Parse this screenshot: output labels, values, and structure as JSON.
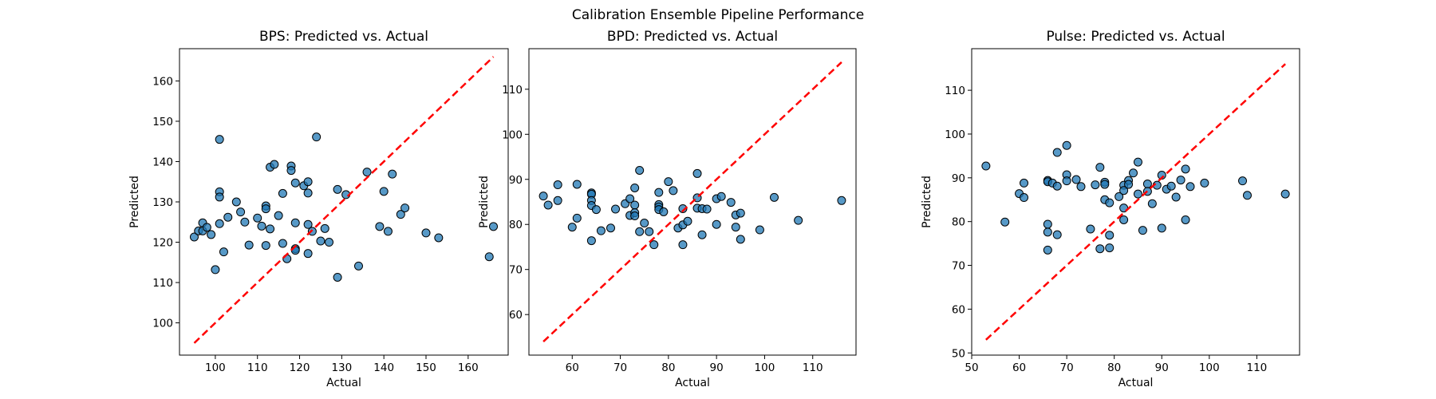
{
  "figure": {
    "suptitle": "Calibration Ensemble Pipeline Performance"
  },
  "chart_data": [
    {
      "type": "scatter",
      "title": "BPS: Predicted vs. Actual",
      "xlabel": "Actual",
      "ylabel": "Predicted",
      "xlim": [
        91.5,
        169.5
      ],
      "ylim": [
        92,
        168
      ],
      "xticks": [
        100,
        110,
        120,
        130,
        140,
        150,
        160
      ],
      "yticks": [
        100,
        110,
        120,
        130,
        140,
        150,
        160
      ],
      "ideal_line": [
        [
          95,
          95
        ],
        [
          166,
          166
        ]
      ],
      "ideal_line_color": "#ff0000",
      "point_color": "#1f77b4",
      "points": [
        [
          95,
          121.3
        ],
        [
          96,
          122.8
        ],
        [
          97,
          124.8
        ],
        [
          97,
          122.8
        ],
        [
          98,
          123.7
        ],
        [
          99,
          121.9
        ],
        [
          100,
          113.2
        ],
        [
          101,
          145.5
        ],
        [
          101,
          132.5
        ],
        [
          101,
          131.2
        ],
        [
          101,
          124.6
        ],
        [
          102,
          117.6
        ],
        [
          103,
          126.2
        ],
        [
          105,
          130
        ],
        [
          106,
          127.5
        ],
        [
          107,
          125
        ],
        [
          108,
          119.3
        ],
        [
          110,
          126
        ],
        [
          111,
          124
        ],
        [
          112,
          129
        ],
        [
          112,
          128.3
        ],
        [
          112,
          119.2
        ],
        [
          113,
          138.6
        ],
        [
          113,
          123.3
        ],
        [
          114,
          139.3
        ],
        [
          115,
          126.6
        ],
        [
          116,
          132.1
        ],
        [
          116,
          119.7
        ],
        [
          117,
          115.9
        ],
        [
          118,
          138.9
        ],
        [
          118,
          137.8
        ],
        [
          119,
          124.8
        ],
        [
          119,
          134.7
        ],
        [
          119,
          118.4
        ],
        [
          119,
          118
        ],
        [
          121,
          134
        ],
        [
          122,
          135
        ],
        [
          122,
          132.2
        ],
        [
          122,
          124.4
        ],
        [
          122,
          117.2
        ],
        [
          123,
          122.7
        ],
        [
          124,
          146.1
        ],
        [
          125,
          120.3
        ],
        [
          126,
          123.4
        ],
        [
          127,
          120
        ],
        [
          129,
          133.1
        ],
        [
          129,
          111.3
        ],
        [
          131,
          131.8
        ],
        [
          134,
          114.1
        ],
        [
          136,
          137.4
        ],
        [
          139,
          123.9
        ],
        [
          140,
          132.6
        ],
        [
          141,
          122.7
        ],
        [
          142,
          136.9
        ],
        [
          144,
          126.9
        ],
        [
          145,
          128.5
        ],
        [
          150,
          122.3
        ],
        [
          153,
          121.1
        ],
        [
          165,
          116.4
        ],
        [
          166,
          123.9
        ]
      ]
    },
    {
      "type": "scatter",
      "title": "BPD: Predicted vs. Actual",
      "xlabel": "Actual",
      "ylabel": "Predicted",
      "xlim": [
        51,
        119
      ],
      "ylim": [
        51,
        119
      ],
      "xticks": [
        60,
        70,
        80,
        90,
        100,
        110
      ],
      "yticks": [
        60,
        70,
        80,
        90,
        100,
        110
      ],
      "ideal_line": [
        [
          54,
          54
        ],
        [
          116,
          116
        ]
      ],
      "ideal_line_color": "#ff0000",
      "point_color": "#1f77b4",
      "points": [
        [
          54,
          86.3
        ],
        [
          55,
          84.3
        ],
        [
          57,
          88.8
        ],
        [
          57,
          85.3
        ],
        [
          60,
          79.4
        ],
        [
          61,
          88.9
        ],
        [
          61,
          81.4
        ],
        [
          64,
          87
        ],
        [
          64,
          86.7
        ],
        [
          64,
          85.3
        ],
        [
          64,
          84.2
        ],
        [
          64,
          76.4
        ],
        [
          65,
          83.3
        ],
        [
          66,
          78.6
        ],
        [
          68,
          79.2
        ],
        [
          69,
          83.4
        ],
        [
          71,
          84.6
        ],
        [
          72,
          85.7
        ],
        [
          72,
          82
        ],
        [
          73,
          88.1
        ],
        [
          73,
          84.3
        ],
        [
          73,
          82.6
        ],
        [
          73,
          81.9
        ],
        [
          74,
          92
        ],
        [
          74,
          78.4
        ],
        [
          75,
          80.3
        ],
        [
          76,
          78.4
        ],
        [
          77,
          75.5
        ],
        [
          78,
          87.1
        ],
        [
          78,
          84.4
        ],
        [
          78,
          83.9
        ],
        [
          78,
          83.3
        ],
        [
          79,
          82.8
        ],
        [
          80,
          89.5
        ],
        [
          81,
          87.5
        ],
        [
          82,
          79.2
        ],
        [
          83,
          83.5
        ],
        [
          83,
          75.5
        ],
        [
          83,
          79.9
        ],
        [
          84,
          80.7
        ],
        [
          86,
          91.3
        ],
        [
          86,
          85.9
        ],
        [
          86,
          83.6
        ],
        [
          87,
          77.7
        ],
        [
          87,
          83.5
        ],
        [
          88,
          83.4
        ],
        [
          90,
          85.7
        ],
        [
          90,
          80
        ],
        [
          91,
          86.2
        ],
        [
          93,
          84.9
        ],
        [
          94,
          82.1
        ],
        [
          94,
          79.4
        ],
        [
          95,
          82.5
        ],
        [
          95,
          76.7
        ],
        [
          99,
          78.8
        ],
        [
          102,
          86
        ],
        [
          107,
          80.9
        ],
        [
          116,
          85.3
        ]
      ]
    },
    {
      "type": "scatter",
      "title": "Pulse: Predicted vs. Actual",
      "xlabel": "Actual",
      "ylabel": "Predicted",
      "xlim": [
        50,
        119
      ],
      "ylim": [
        49.5,
        119.5
      ],
      "xticks": [
        50,
        60,
        70,
        80,
        90,
        100,
        110
      ],
      "yticks": [
        50,
        60,
        70,
        80,
        90,
        100,
        110
      ],
      "ideal_line": [
        [
          53,
          53
        ],
        [
          116,
          116
        ]
      ],
      "ideal_line_color": "#ff0000",
      "point_color": "#1f77b4",
      "points": [
        [
          53,
          92.7
        ],
        [
          57,
          79.9
        ],
        [
          60,
          86.4
        ],
        [
          61,
          88.8
        ],
        [
          61,
          85.5
        ],
        [
          66,
          89.4
        ],
        [
          66,
          89.1
        ],
        [
          66,
          79.4
        ],
        [
          66,
          77.6
        ],
        [
          66,
          73.5
        ],
        [
          67,
          88.8
        ],
        [
          68,
          88.1
        ],
        [
          68,
          77
        ],
        [
          68,
          95.8
        ],
        [
          70,
          97.4
        ],
        [
          70,
          90.7
        ],
        [
          70,
          89.3
        ],
        [
          72,
          89.6
        ],
        [
          73,
          88
        ],
        [
          75,
          78.3
        ],
        [
          76,
          88.4
        ],
        [
          77,
          92.4
        ],
        [
          77,
          73.8
        ],
        [
          78,
          89
        ],
        [
          78,
          88.5
        ],
        [
          78,
          85
        ],
        [
          79,
          84.3
        ],
        [
          79,
          76.9
        ],
        [
          79,
          74
        ],
        [
          81,
          85.7
        ],
        [
          82,
          88.3
        ],
        [
          82,
          87.1
        ],
        [
          82,
          83.1
        ],
        [
          82,
          80.4
        ],
        [
          83,
          89.4
        ],
        [
          83,
          88.5
        ],
        [
          84,
          91.1
        ],
        [
          85,
          93.6
        ],
        [
          85,
          86.3
        ],
        [
          86,
          78
        ],
        [
          87,
          88.6
        ],
        [
          87,
          86.9
        ],
        [
          88,
          84.1
        ],
        [
          89,
          88.3
        ],
        [
          90,
          90.6
        ],
        [
          90,
          78.5
        ],
        [
          91,
          87.4
        ],
        [
          92,
          88.1
        ],
        [
          93,
          85.6
        ],
        [
          94,
          89.5
        ],
        [
          95,
          92
        ],
        [
          95,
          80.4
        ],
        [
          96,
          88
        ],
        [
          99,
          88.8
        ],
        [
          107,
          89.3
        ],
        [
          108,
          86
        ],
        [
          116,
          86.3
        ]
      ]
    }
  ]
}
